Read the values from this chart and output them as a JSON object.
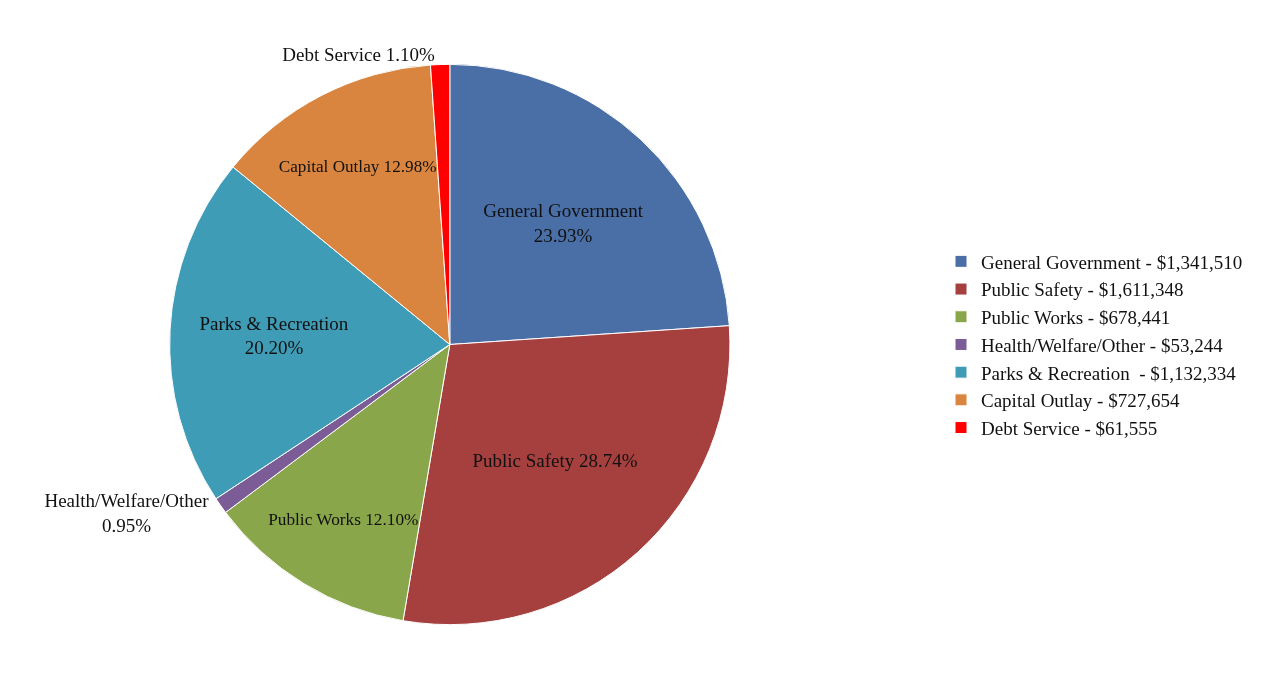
{
  "chart_data": {
    "type": "pie",
    "categories": [
      "General Government - $1,341,510",
      "Public Safety - $1,611,348",
      "Public Works - $678,441",
      "Health/Welfare/Other - $53,244",
      "Parks & Recreation  - $1,132,334",
      "Capital Outlay - $727,654",
      "Debt Service - $61,555"
    ],
    "values": [
      23.93,
      28.74,
      12.1,
      0.95,
      20.2,
      12.98,
      1.1
    ],
    "colors": [
      "#4a6ea6",
      "#a6403f",
      "#8aa64b",
      "#7b5c97",
      "#3f9cb6",
      "#d9853f",
      "#ff0000"
    ],
    "value_labels": [
      "General Government\n23.93%",
      "Public Safety 28.74%",
      "Public Works 12.10%",
      "Health/Welfare/Other\n0.95%",
      "Parks & Recreation\n20.20%",
      "Capital Outlay 12.98%",
      "Debt Service 1.10%"
    ],
    "legend": "right"
  }
}
